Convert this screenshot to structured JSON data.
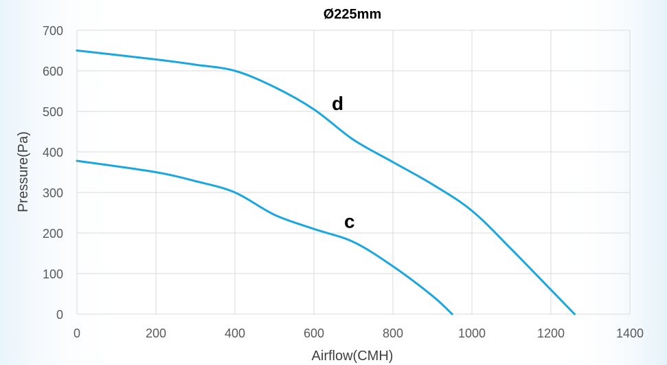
{
  "chart_data": {
    "type": "line",
    "title": "Ø225mm",
    "xlabel": "Airflow(CMH)",
    "ylabel": "Pressure(Pa)",
    "xlim": [
      0,
      1400
    ],
    "ylim": [
      0,
      700
    ],
    "x_ticks": [
      "0",
      "200",
      "400",
      "600",
      "800",
      "1000",
      "1200",
      "1400"
    ],
    "y_ticks": [
      "0",
      "100",
      "200",
      "300",
      "400",
      "500",
      "600",
      "700"
    ],
    "grid": true,
    "legend": "none",
    "line_color": "#1aa7e0",
    "series": [
      {
        "name": "d",
        "points": [
          [
            0,
            650
          ],
          [
            200,
            628
          ],
          [
            300,
            615
          ],
          [
            400,
            600
          ],
          [
            500,
            560
          ],
          [
            600,
            505
          ],
          [
            700,
            430
          ],
          [
            800,
            375
          ],
          [
            900,
            320
          ],
          [
            1000,
            255
          ],
          [
            1100,
            160
          ],
          [
            1200,
            60
          ],
          [
            1260,
            0
          ]
        ]
      },
      {
        "name": "c",
        "points": [
          [
            0,
            378
          ],
          [
            200,
            350
          ],
          [
            300,
            328
          ],
          [
            400,
            300
          ],
          [
            500,
            245
          ],
          [
            600,
            210
          ],
          [
            700,
            178
          ],
          [
            800,
            118
          ],
          [
            900,
            45
          ],
          [
            950,
            0
          ]
        ]
      }
    ]
  }
}
